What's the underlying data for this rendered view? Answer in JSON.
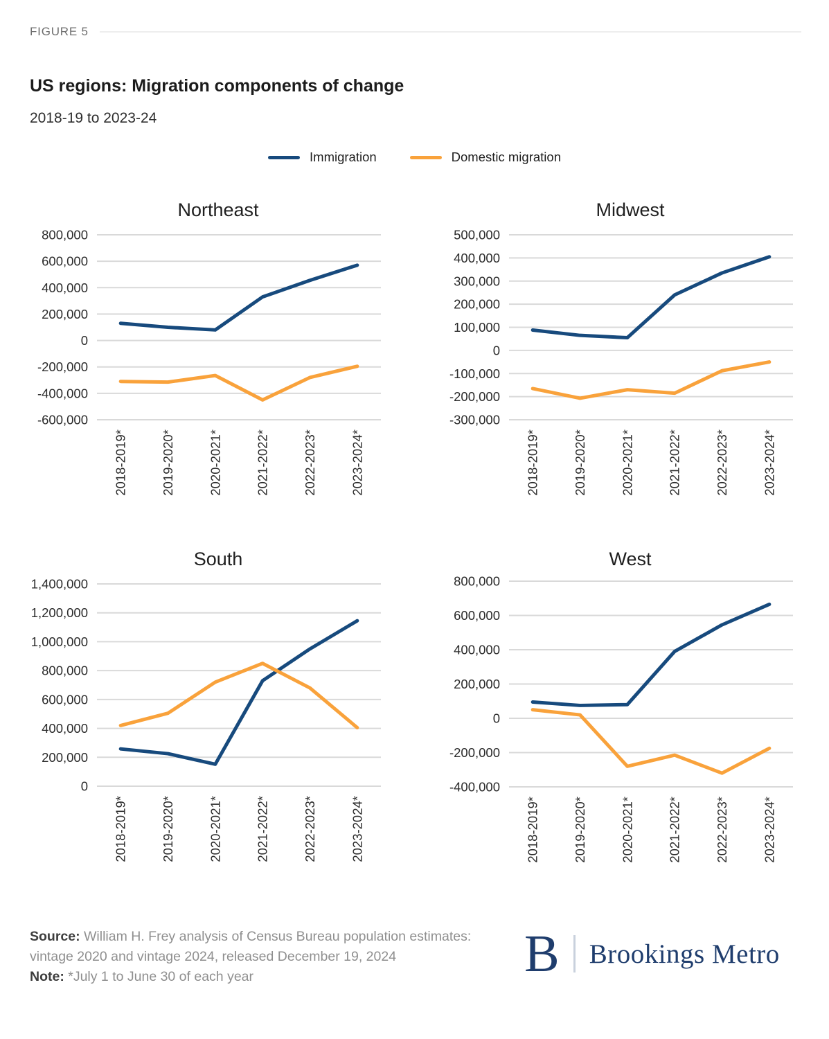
{
  "figure_label": "FIGURE 5",
  "title": "US regions: Migration components of change",
  "subtitle": "2018-19 to 2023-24",
  "legend": [
    {
      "label": "Immigration",
      "color": "#174A7D"
    },
    {
      "label": "Domestic migration",
      "color": "#F9A23B"
    }
  ],
  "colors": {
    "immigration": "#174A7D",
    "domestic_migration": "#F9A23B",
    "gridline": "#D9D9D9",
    "axis_text": "#2b2b2b",
    "brookings_navy": "#1F3D6D"
  },
  "chart_data": [
    {
      "type": "line",
      "title": "Northeast",
      "categories": [
        "2018-2019*",
        "2019-2020*",
        "2020-2021*",
        "2021-2022*",
        "2022-2023*",
        "2023-2024*"
      ],
      "series": [
        {
          "name": "Immigration",
          "color": "#174A7D",
          "values": [
            130000,
            100000,
            80000,
            330000,
            455000,
            570000
          ]
        },
        {
          "name": "Domestic migration",
          "color": "#F9A23B",
          "values": [
            -310000,
            -315000,
            -265000,
            -450000,
            -280000,
            -195000
          ]
        }
      ],
      "yticks": [
        800000,
        600000,
        400000,
        200000,
        0,
        -200000,
        -400000,
        -600000
      ],
      "ylim": [
        -600000,
        800000
      ],
      "grid": true,
      "legend_position": "top"
    },
    {
      "type": "line",
      "title": "Midwest",
      "categories": [
        "2018-2019*",
        "2019-2020*",
        "2020-2021*",
        "2021-2022*",
        "2022-2023*",
        "2023-2024*"
      ],
      "series": [
        {
          "name": "Immigration",
          "color": "#174A7D",
          "values": [
            88000,
            65000,
            55000,
            240000,
            335000,
            405000
          ]
        },
        {
          "name": "Domestic migration",
          "color": "#F9A23B",
          "values": [
            -165000,
            -207000,
            -170000,
            -185000,
            -88000,
            -50000
          ]
        }
      ],
      "yticks": [
        500000,
        400000,
        300000,
        200000,
        100000,
        0,
        -100000,
        -200000,
        -300000
      ],
      "ylim": [
        -300000,
        500000
      ],
      "grid": true,
      "legend_position": "top"
    },
    {
      "type": "line",
      "title": "South",
      "categories": [
        "2018-2019*",
        "2019-2020*",
        "2020-2021*",
        "2021-2022*",
        "2022-2023*",
        "2023-2024*"
      ],
      "series": [
        {
          "name": "Immigration",
          "color": "#174A7D",
          "values": [
            258000,
            225000,
            152000,
            730000,
            950000,
            1145000
          ]
        },
        {
          "name": "Domestic migration",
          "color": "#F9A23B",
          "values": [
            420000,
            505000,
            720000,
            850000,
            680000,
            405000
          ]
        }
      ],
      "yticks": [
        1400000,
        1200000,
        1000000,
        800000,
        600000,
        400000,
        200000,
        0
      ],
      "ylim": [
        0,
        1400000
      ],
      "grid": true,
      "legend_position": "top"
    },
    {
      "type": "line",
      "title": "West",
      "categories": [
        "2018-2019*",
        "2019-2020*",
        "2020-2021*",
        "2021-2022*",
        "2022-2023*",
        "2023-2024*"
      ],
      "series": [
        {
          "name": "Immigration",
          "color": "#174A7D",
          "values": [
            95000,
            75000,
            80000,
            390000,
            545000,
            665000
          ]
        },
        {
          "name": "Domestic migration",
          "color": "#F9A23B",
          "values": [
            50000,
            20000,
            -280000,
            -215000,
            -320000,
            -175000
          ]
        }
      ],
      "yticks": [
        800000,
        600000,
        400000,
        200000,
        0,
        -200000,
        -400000
      ],
      "ylim": [
        -400000,
        800000
      ],
      "grid": true,
      "legend_position": "top"
    }
  ],
  "footer": {
    "source_label": "Source:",
    "source_text": " William H. Frey analysis of Census Bureau population estimates: vintage 2020 and vintage 2024, released December 19, 2024",
    "note_label": "Note:",
    "note_text": " *July 1 to June 30 of each year"
  },
  "logo": {
    "mark": "B",
    "text": "Brookings Metro"
  }
}
